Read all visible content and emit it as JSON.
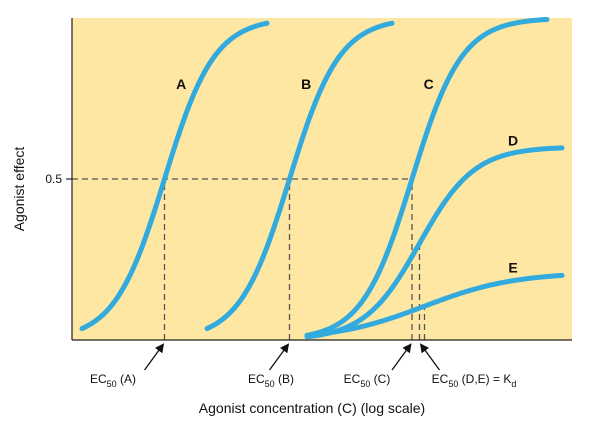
{
  "chart_data": {
    "type": "line",
    "xlabel": "Agonist concentration (C) (log scale)",
    "ylabel": "Agonist effect",
    "xscale": "log",
    "xlim": [
      0,
      10
    ],
    "ylim": [
      0,
      1
    ],
    "y_ticks": [
      {
        "value": 0.5,
        "label": "0.5"
      }
    ],
    "grid": false,
    "legend": "none",
    "colors": {
      "curve": "#33aadd",
      "plot_background": "#fde7a3",
      "dashed_line": "#555555"
    },
    "series": [
      {
        "name": "A",
        "x_ec50": 1.85,
        "emax": 1.0,
        "slope": 0.5,
        "x_start": 0.2,
        "x_end": 3.9
      },
      {
        "name": "B",
        "x_ec50": 4.35,
        "emax": 1.0,
        "slope": 0.5,
        "x_start": 2.7,
        "x_end": 6.4
      },
      {
        "name": "C",
        "x_ec50": 6.8,
        "emax": 1.0,
        "slope": 0.5,
        "x_start": 4.7,
        "x_end": 9.5
      },
      {
        "name": "D",
        "x_ec50": 6.95,
        "emax": 0.6,
        "slope": 0.55,
        "x_start": 4.7,
        "x_end": 9.8
      },
      {
        "name": "E",
        "x_ec50": 7.05,
        "emax": 0.21,
        "slope": 0.9,
        "x_start": 4.7,
        "x_end": 9.8
      }
    ],
    "reference_lines": [
      {
        "kind": "horizontal",
        "y": 0.5,
        "x_from": 0,
        "x_to": 6.8
      },
      {
        "kind": "vertical",
        "x": 1.85,
        "y_to": 0.5
      },
      {
        "kind": "vertical",
        "x": 4.35,
        "y_to": 0.5
      },
      {
        "kind": "vertical",
        "x": 6.8,
        "y_to": 0.5
      },
      {
        "kind": "vertical",
        "x": 6.95,
        "y_to": 0.3
      },
      {
        "kind": "vertical",
        "x": 7.05,
        "y_to": 0.105
      }
    ],
    "annotations": [
      {
        "main": "EC",
        "sub": "50",
        "suffix": " (A)",
        "x": 1.85
      },
      {
        "main": "EC",
        "sub": "50",
        "suffix": " (B)",
        "x": 4.35
      },
      {
        "main": "EC",
        "sub": "50",
        "suffix": " (C)",
        "x": 6.8
      },
      {
        "main": "EC",
        "sub": "50",
        "suffix": " (D,E) = K",
        "sub2": "d",
        "x": 6.95
      }
    ]
  }
}
